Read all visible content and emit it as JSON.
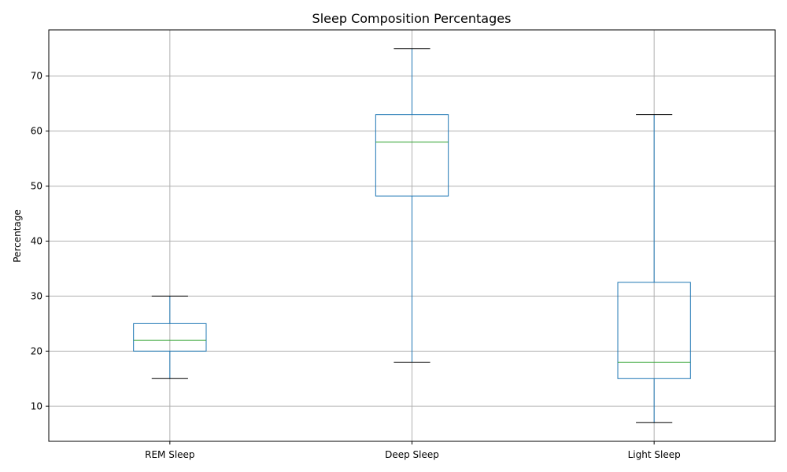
{
  "chart_data": {
    "type": "box",
    "title": "Sleep Composition Percentages",
    "xlabel": "",
    "ylabel": "Percentage",
    "ylim": [
      3.6,
      78.4
    ],
    "yticks": [
      10,
      20,
      30,
      40,
      50,
      60,
      70
    ],
    "grid": true,
    "categories": [
      "REM Sleep",
      "Deep Sleep",
      "Light Sleep"
    ],
    "boxes": [
      {
        "whisker_low": 15,
        "q1": 20,
        "median": 22,
        "q3": 25,
        "whisker_high": 30
      },
      {
        "whisker_low": 18,
        "q1": 48.2,
        "median": 58,
        "q3": 63,
        "whisker_high": 75
      },
      {
        "whisker_low": 7,
        "q1": 15,
        "median": 18,
        "q3": 32.5,
        "whisker_high": 63
      }
    ],
    "colors": {
      "box": "#1f77b4",
      "median": "#2ca02c",
      "cap": "#000000",
      "grid": "#b0b0b0"
    }
  }
}
